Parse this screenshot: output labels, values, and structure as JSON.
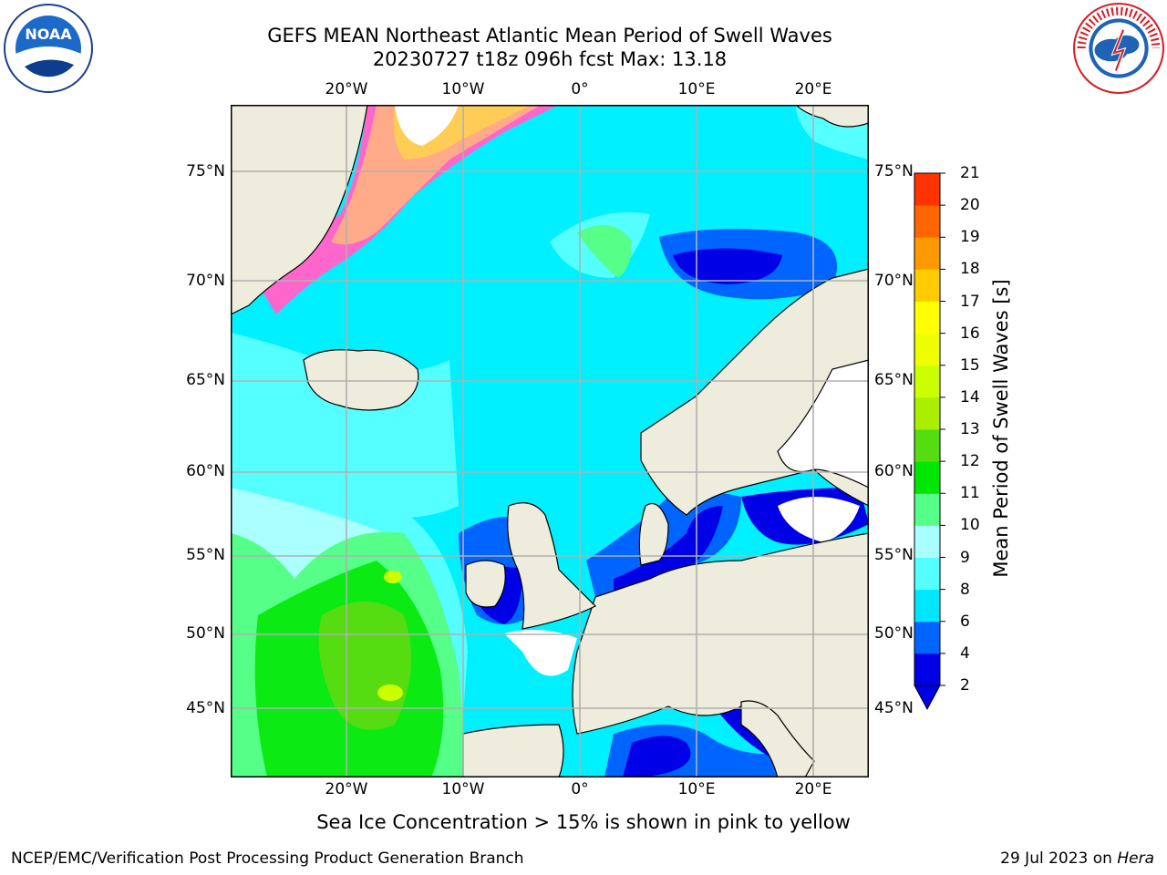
{
  "title_line1": "GEFS MEAN Northeast Atlantic Mean Period of Swell Waves",
  "title_line2": "20230727 t18z 096h fcst   Max: 13.18",
  "longitude_labels": [
    "20°W",
    "10°W",
    "0°",
    "10°E",
    "20°E"
  ],
  "latitude_labels": [
    "75°N",
    "70°N",
    "65°N",
    "60°N",
    "55°N",
    "50°N",
    "45°N"
  ],
  "colorbar": {
    "label": "Mean Period of Swell Waves [s]",
    "ticks": [
      "2",
      "4",
      "6",
      "8",
      "9",
      "10",
      "11",
      "12",
      "13",
      "14",
      "15",
      "16",
      "17",
      "18",
      "19",
      "20",
      "21"
    ],
    "colors": [
      "#0000e6",
      "#0064ff",
      "#00e6ff",
      "#55ffff",
      "#aaffff",
      "#55ff88",
      "#00e600",
      "#55dd11",
      "#aaee00",
      "#ccff00",
      "#eeff00",
      "#ffff00",
      "#ffcc00",
      "#ff9900",
      "#ff6600",
      "#ff3300",
      "#ff0000"
    ],
    "extend": "min"
  },
  "ice_note": "Sea Ice Concentration > 15% is shown in pink to yellow",
  "footer_left": "NCEP/EMC/Verification Post Processing Product Generation Branch",
  "footer_date": "29 Jul 2023 on ",
  "footer_host": "Hera",
  "colors": {
    "land": "#eeecdc",
    "grid": "#b0b0b0",
    "ocean_base": "#00f0ff"
  }
}
